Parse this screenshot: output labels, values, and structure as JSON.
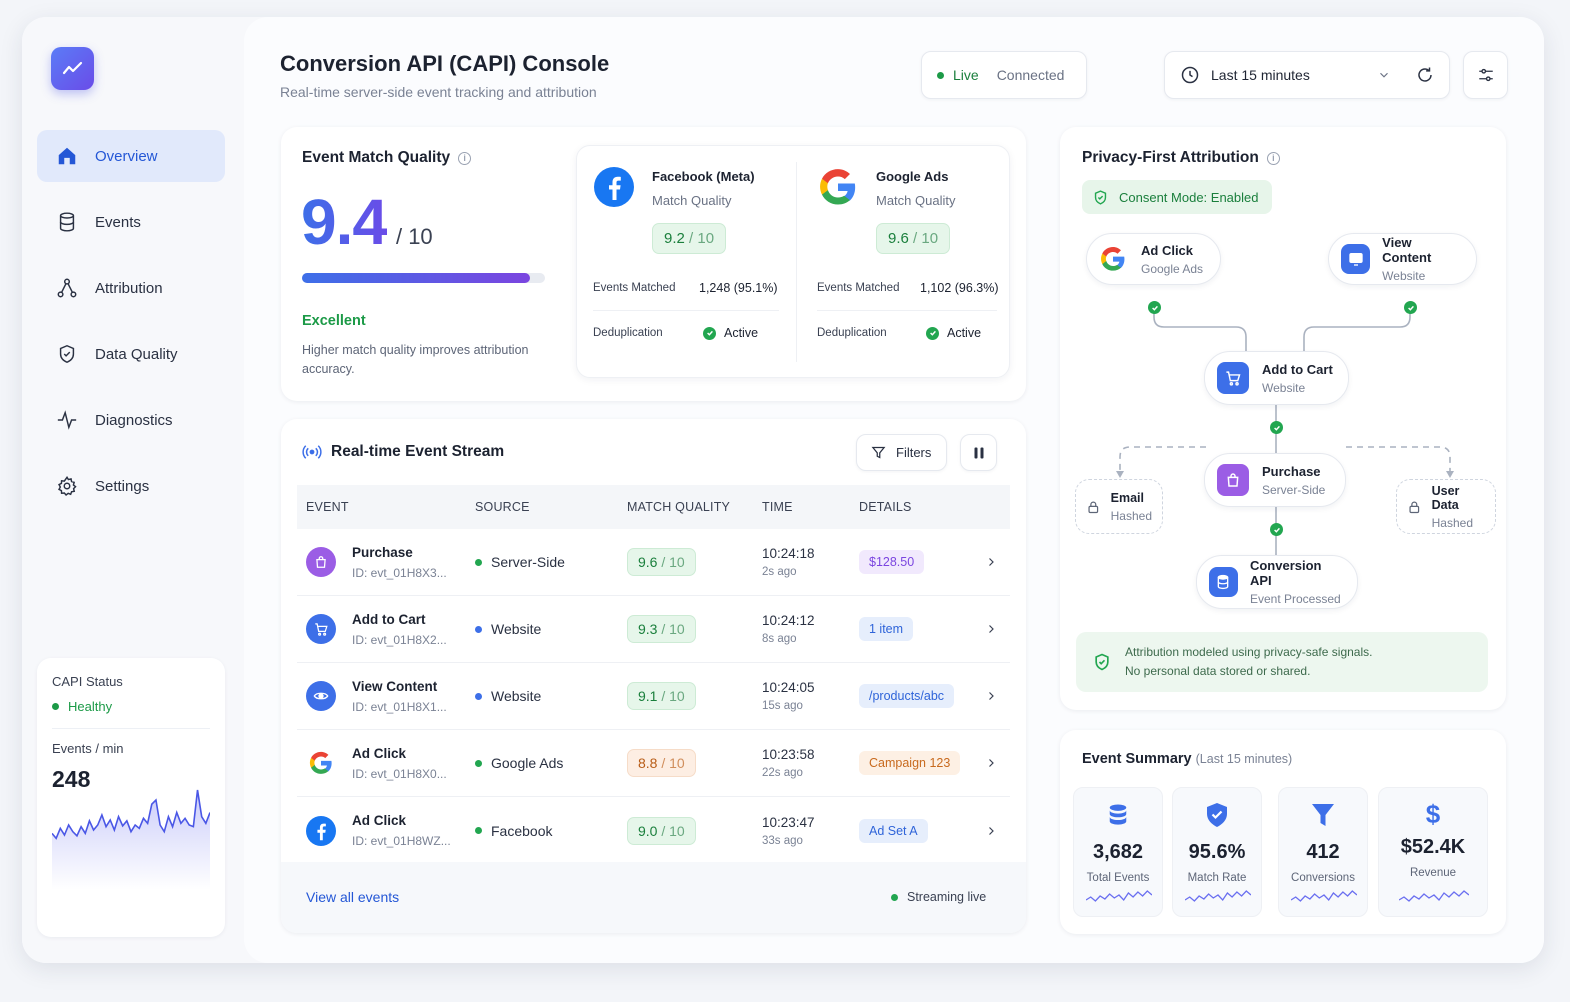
{
  "sidebar": {
    "nav": [
      {
        "label": "Overview",
        "icon": "home-icon"
      },
      {
        "label": "Events",
        "icon": "database-icon"
      },
      {
        "label": "Attribution",
        "icon": "network-icon"
      },
      {
        "label": "Data Quality",
        "icon": "shield-check-icon"
      },
      {
        "label": "Diagnostics",
        "icon": "pulse-icon"
      },
      {
        "label": "Settings",
        "icon": "gear-icon"
      }
    ],
    "status": {
      "label": "CAPI Status",
      "value": "Healthy",
      "rate_label": "Events / min",
      "rate_value": "248",
      "sparkline": [
        20,
        14,
        26,
        18,
        30,
        22,
        17,
        28,
        20,
        35,
        24,
        30,
        42,
        28,
        36,
        24,
        40,
        29,
        35,
        22,
        30,
        26,
        38,
        32,
        55,
        60,
        30,
        22,
        40,
        28,
        45,
        32,
        38,
        30,
        28,
        72,
        40,
        32,
        45
      ]
    }
  },
  "header": {
    "title": "Conversion API (CAPI) Console",
    "subtitle": "Real-time server-side event tracking and attribution",
    "live": "Live",
    "connected": "Connected",
    "range": "Last 15 minutes"
  },
  "emq": {
    "title": "Event Match Quality",
    "score": "9.4",
    "out_of": "/ 10",
    "fill": 0.94,
    "grade": "Excellent",
    "note": "Higher match quality improves attribution accuracy.",
    "platforms": [
      {
        "name": "Facebook (Meta)",
        "sub": "Match Quality",
        "score": "9.2",
        "out": "/ 10",
        "matched_label": "Events Matched",
        "matched": "1,248 (95.1%)",
        "dedup_label": "Deduplication",
        "dedup": "Active"
      },
      {
        "name": "Google Ads",
        "sub": "Match Quality",
        "score": "9.6",
        "out": "/ 10",
        "matched_label": "Events Matched",
        "matched": "1,102 (96.3%)",
        "dedup_label": "Deduplication",
        "dedup": "Active"
      }
    ]
  },
  "stream": {
    "title": "Real-time Event Stream",
    "filters": "Filters",
    "columns": [
      "EVENT",
      "SOURCE",
      "MATCH QUALITY",
      "TIME",
      "DETAILS"
    ],
    "rows": [
      {
        "name": "Purchase",
        "id": "ID: evt_01H8X3...",
        "source": "Server-Side",
        "score": "9.6",
        "out": "/ 10",
        "time": "10:24:18",
        "ago": "2s ago",
        "detail": "$128.50"
      },
      {
        "name": "Add to Cart",
        "id": "ID: evt_01H8X2...",
        "source": "Website",
        "score": "9.3",
        "out": "/ 10",
        "time": "10:24:12",
        "ago": "8s ago",
        "detail": "1 item"
      },
      {
        "name": "View Content",
        "id": "ID: evt_01H8X1...",
        "source": "Website",
        "score": "9.1",
        "out": "/ 10",
        "time": "10:24:05",
        "ago": "15s ago",
        "detail": "/products/abc"
      },
      {
        "name": "Ad Click",
        "id": "ID: evt_01H8X0...",
        "source": "Google Ads",
        "score": "8.8",
        "out": "/ 10",
        "time": "10:23:58",
        "ago": "22s ago",
        "detail": "Campaign 123"
      },
      {
        "name": "Ad Click",
        "id": "ID: evt_01H8WZ...",
        "source": "Facebook",
        "score": "9.0",
        "out": "/ 10",
        "time": "10:23:47",
        "ago": "33s ago",
        "detail": "Ad Set A"
      }
    ],
    "view_all": "View all events",
    "streaming": "Streaming live"
  },
  "attribution": {
    "title": "Privacy-First Attribution",
    "consent": "Consent Mode: Enabled",
    "nodes": {
      "ad_click": {
        "t": "Ad Click",
        "s": "Google Ads"
      },
      "view_content": {
        "t": "View Content",
        "s": "Website"
      },
      "add_to_cart": {
        "t": "Add to Cart",
        "s": "Website"
      },
      "purchase": {
        "t": "Purchase",
        "s": "Server-Side"
      },
      "email": {
        "t": "Email",
        "s": "Hashed"
      },
      "user_data": {
        "t": "User Data",
        "s": "Hashed"
      },
      "capi": {
        "t": "Conversion API",
        "s": "Event Processed"
      }
    },
    "note_line1": "Attribution modeled using privacy-safe signals.",
    "note_line2": "No personal data stored or shared."
  },
  "summary": {
    "title": "Event Summary",
    "range": "(Last 15 minutes)",
    "stats": [
      {
        "value": "3,682",
        "label": "Total Events",
        "icon": "database-icon",
        "color": "#3d6fe8"
      },
      {
        "value": "95.6%",
        "label": "Match Rate",
        "icon": "shield-check-icon",
        "color": "#3d6fe8"
      },
      {
        "value": "412",
        "label": "Conversions",
        "icon": "funnel-icon",
        "color": "#3d6fe8"
      },
      {
        "value": "$52.4K",
        "label": "Revenue",
        "icon": "dollar-icon",
        "color": "#3d6fe8"
      }
    ]
  },
  "colors": {
    "accent": "#2457d6",
    "green": "#1c9a47",
    "purple": "#7b45e0",
    "orange": "#e8812f"
  }
}
